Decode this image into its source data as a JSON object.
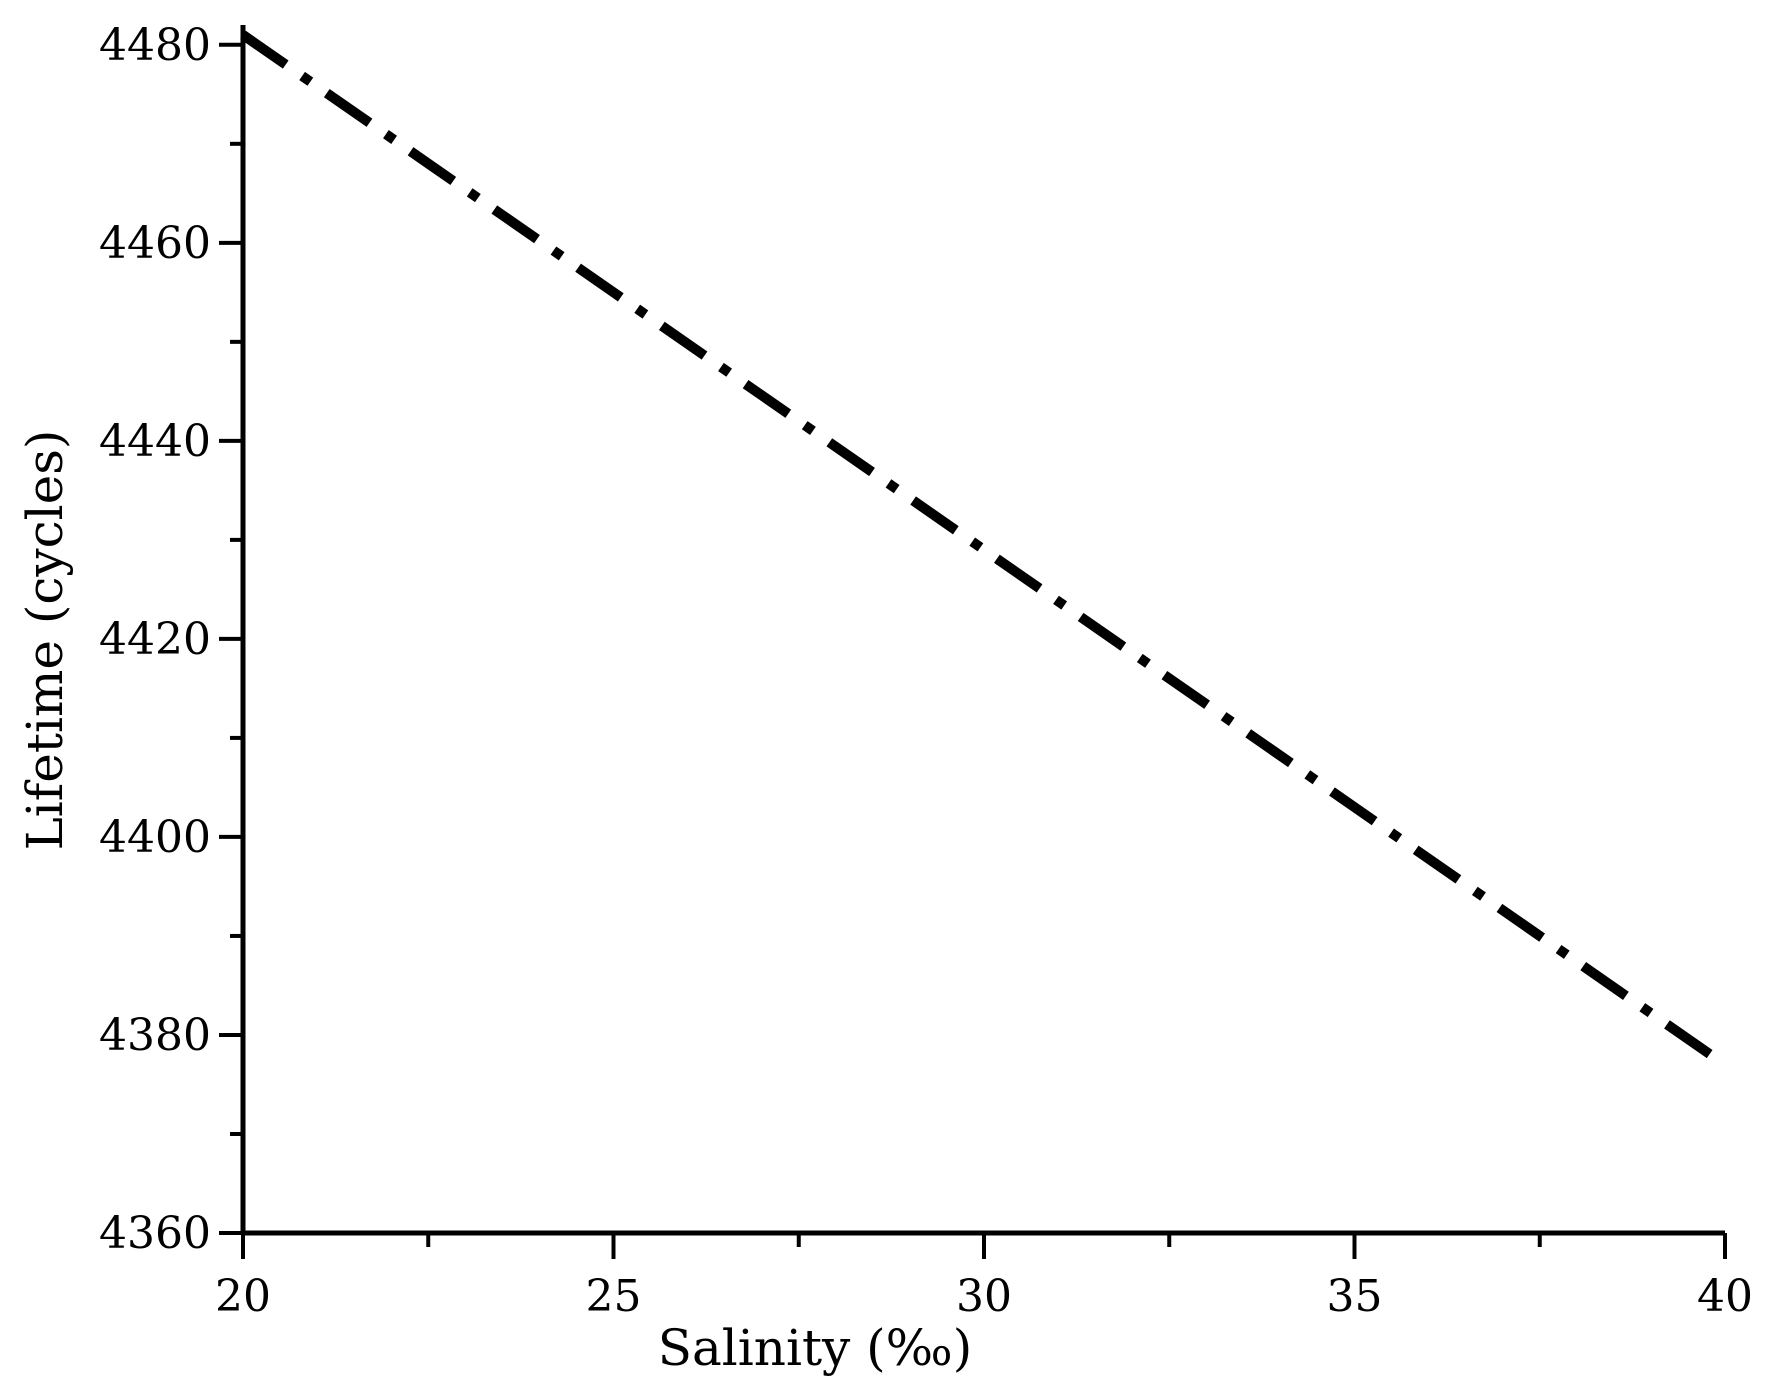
{
  "chart_data": {
    "type": "line",
    "title": "",
    "xlabel": "Salinity (‰)",
    "ylabel": "Lifetime (cycles)",
    "xlim": [
      20,
      40
    ],
    "ylim": [
      4360,
      4482
    ],
    "xticks": [
      20,
      25,
      30,
      35,
      40
    ],
    "xtick_labels": [
      "20",
      "25",
      "30",
      "35",
      "40"
    ],
    "yticks": [
      4360,
      4380,
      4400,
      4420,
      4440,
      4460,
      4480
    ],
    "ytick_labels": [
      "4360",
      "4380",
      "4400",
      "4420",
      "4440",
      "4460",
      "4480"
    ],
    "x_minor_step": 2.5,
    "y_minor_step": 10,
    "grid": false,
    "line_style": "dash-dot",
    "line_color": "#000000",
    "series": [
      {
        "x": [
          20,
          22.5,
          25,
          27.5,
          30,
          32.5,
          35,
          37.5,
          40
        ],
        "values": [
          4481,
          4468,
          4455,
          4442,
          4429,
          4416,
          4403,
          4390,
          4377
        ]
      }
    ]
  }
}
